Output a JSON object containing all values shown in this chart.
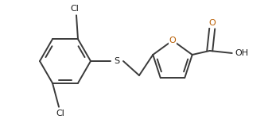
{
  "background_color": "#ffffff",
  "bond_color": "#3a3a3a",
  "line_width": 1.4,
  "figsize": [
    3.42,
    1.55
  ],
  "dpi": 100,
  "atom_colors": {
    "Cl": "#1a1a1a",
    "S": "#1a1a1a",
    "O_carbonyl": "#b85c00",
    "O_ring": "#b85c00",
    "OH": "#1a1a1a"
  }
}
